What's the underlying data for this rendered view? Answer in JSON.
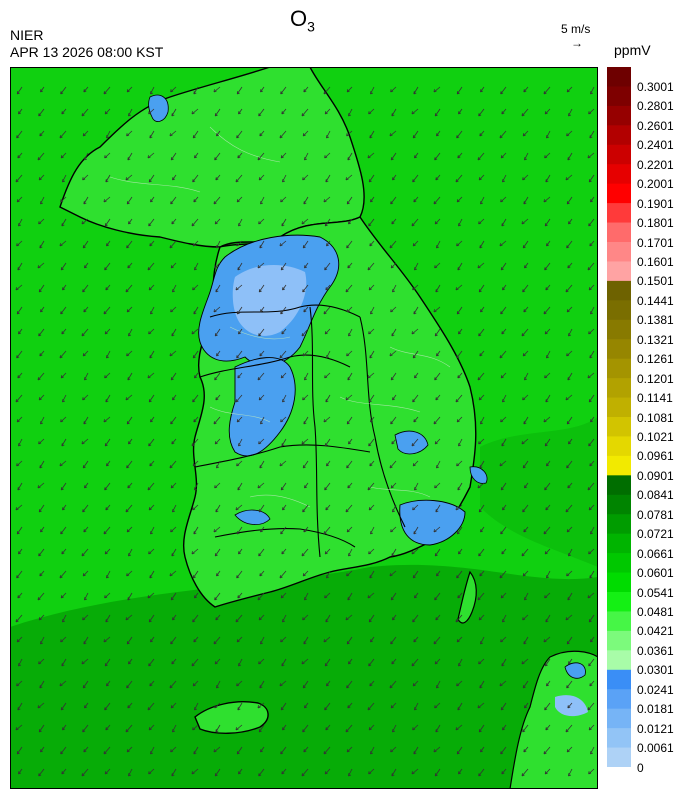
{
  "header": {
    "pollutant": "O",
    "pollutant_sub": "3",
    "agency": "NIER",
    "timestamp": "APR 13 2026 08:00 KST",
    "wind_scale_label": "5 m/s",
    "unit": "ppmV"
  },
  "legend": {
    "labels": [
      "0.3001",
      "0.2801",
      "0.2601",
      "0.2401",
      "0.2201",
      "0.2001",
      "0.1901",
      "0.1801",
      "0.1701",
      "0.1601",
      "0.1501",
      "0.1441",
      "0.1381",
      "0.1321",
      "0.1261",
      "0.1201",
      "0.1141",
      "0.1081",
      "0.1021",
      "0.0961",
      "0.0901",
      "0.0841",
      "0.0781",
      "0.0721",
      "0.0661",
      "0.0601",
      "0.0541",
      "0.0481",
      "0.0421",
      "0.0361",
      "0.0301",
      "0.0241",
      "0.0181",
      "0.0121",
      "0.0061",
      "0"
    ],
    "colors": [
      "#6e0000",
      "#7e0000",
      "#960000",
      "#b20000",
      "#cc0000",
      "#e60000",
      "#ff0000",
      "#ff3a3a",
      "#ff6b6b",
      "#ff8787",
      "#ffa3a3",
      "#6e6200",
      "#7a6e00",
      "#887a00",
      "#968600",
      "#a49400",
      "#b2a200",
      "#c0b000",
      "#d2c400",
      "#e4d800",
      "#f2ea00",
      "#006e00",
      "#008400",
      "#009c00",
      "#00b400",
      "#00c800",
      "#00dc00",
      "#14f014",
      "#46f646",
      "#7cfa7c",
      "#a8fca8",
      "#3a8ef6",
      "#5aa2f6",
      "#76b4f6",
      "#92c4f6",
      "#aed2f6"
    ]
  },
  "map": {
    "ocean_color": "#10d010",
    "land_color": "#2fe02f",
    "low_color": "#4aa0f0",
    "low_color_light": "#8ec0f8",
    "dark_green": "#07ac07"
  }
}
